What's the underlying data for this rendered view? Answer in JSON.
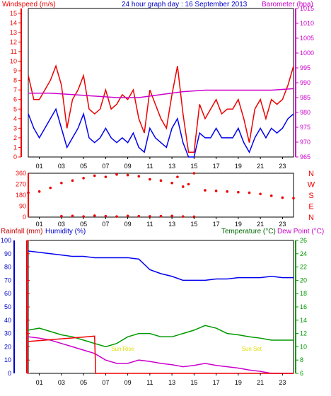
{
  "chart_data": [
    {
      "type": "line",
      "title": "24 hour graph day : 16 September 2013",
      "ylabel_left": "Windspeed (m/s)",
      "ylabel_right": "Barometer (hpa)",
      "x_ticks": [
        "01",
        "03",
        "05",
        "07",
        "09",
        "11",
        "13",
        "15",
        "17",
        "19",
        "21",
        "23"
      ],
      "ylim_left": [
        0,
        15.5
      ],
      "yticks_left": [
        0,
        1,
        2,
        3,
        4,
        5,
        6,
        7,
        8,
        9,
        10,
        11,
        12,
        13,
        14,
        15
      ],
      "ylim_right": [
        965,
        1015
      ],
      "yticks_right": [
        965,
        970,
        975,
        980,
        985,
        990,
        995,
        1000,
        1005,
        1010,
        1015
      ],
      "series": [
        {
          "color": "#ee0000",
          "x": [
            0,
            0.5,
            1,
            1.5,
            2,
            2.5,
            3,
            3.5,
            4,
            4.5,
            5,
            5.5,
            6,
            6.5,
            7,
            7.5,
            8,
            8.5,
            9,
            9.5,
            10,
            10.5,
            11,
            11.5,
            12,
            12.5,
            13,
            13.5,
            14,
            14.5,
            15,
            15.5,
            16,
            16.5,
            17,
            17.5,
            18,
            18.5,
            19,
            19.5,
            20,
            20.5,
            21,
            21.5,
            22,
            22.5,
            23,
            23.5,
            24
          ],
          "values": [
            8.5,
            6,
            6,
            7,
            8,
            9.5,
            7.5,
            3,
            6,
            7,
            8.5,
            5,
            4.5,
            5,
            7,
            5,
            5.5,
            6.5,
            6,
            7,
            4,
            2.5,
            7,
            5.5,
            4,
            3,
            6.5,
            9.5,
            4.5,
            0.5,
            0.5,
            5.5,
            4,
            5,
            6,
            4.5,
            5,
            5,
            6,
            4,
            1.5,
            5,
            6,
            4,
            6,
            5.5,
            6,
            7.5,
            9.5
          ]
        },
        {
          "color": "#0000ee",
          "x": [
            0,
            0.5,
            1,
            1.5,
            2,
            2.5,
            3,
            3.5,
            4,
            4.5,
            5,
            5.5,
            6,
            6.5,
            7,
            7.5,
            8,
            8.5,
            9,
            9.5,
            10,
            10.5,
            11,
            11.5,
            12,
            12.5,
            13,
            13.5,
            14,
            14.5,
            15,
            15.5,
            16,
            16.5,
            17,
            17.5,
            18,
            18.5,
            19,
            19.5,
            20,
            20.5,
            21,
            21.5,
            22,
            22.5,
            23,
            23.5,
            24
          ],
          "values": [
            4.5,
            3,
            2,
            3,
            4,
            5,
            3,
            1,
            2,
            3,
            4.5,
            2,
            1.5,
            2,
            3,
            2,
            1.5,
            2,
            1.5,
            2.5,
            1,
            0.5,
            3,
            2,
            1.5,
            1,
            3,
            4,
            1.5,
            0,
            0,
            2.5,
            2,
            2,
            3,
            2,
            2,
            2,
            3,
            1.5,
            0.5,
            2,
            3,
            2,
            3,
            2.5,
            3,
            4,
            4.5
          ]
        },
        {
          "color": "#cc00cc",
          "axis": "right",
          "x": [
            0,
            2,
            4,
            6,
            8,
            10,
            12,
            14,
            16,
            18,
            20,
            22,
            24
          ],
          "values": [
            986.5,
            986.5,
            986,
            985.5,
            985,
            985,
            986,
            987,
            987.5,
            987.5,
            987.5,
            987.5,
            988
          ]
        }
      ]
    },
    {
      "type": "scatter",
      "ylabel_right": "N W S E N",
      "x_ticks": [
        "01",
        "03",
        "05",
        "07",
        "09",
        "11",
        "13",
        "15",
        "17",
        "19",
        "21",
        "23"
      ],
      "yticks_left": [
        0,
        90,
        180,
        270,
        360
      ],
      "ylim_left": [
        0,
        360
      ],
      "compass_labels": [
        "N",
        "W",
        "S",
        "E",
        "N"
      ],
      "series": [
        {
          "color": "#ee0000",
          "x": [
            0,
            1,
            2,
            3,
            4,
            5,
            6,
            7,
            8,
            9,
            10,
            11,
            12,
            13,
            13.5,
            14,
            14.5,
            15,
            16,
            17,
            18,
            19,
            20,
            21,
            22,
            23,
            24
          ],
          "values": [
            200,
            210,
            240,
            280,
            300,
            320,
            340,
            330,
            350,
            345,
            335,
            310,
            300,
            280,
            330,
            250,
            270,
            360,
            220,
            215,
            210,
            205,
            200,
            190,
            175,
            160,
            155
          ]
        },
        {
          "color": "#ee0000",
          "x": [
            3,
            4,
            5,
            6,
            7,
            8,
            9,
            10,
            11,
            12,
            13,
            14,
            15
          ],
          "values": [
            8,
            10,
            5,
            12,
            8,
            5,
            10,
            8,
            6,
            8,
            10,
            5,
            3
          ]
        }
      ]
    },
    {
      "type": "line",
      "ylabel_left": "Rainfall (mm)",
      "ylabel_left2": "Humidity (%)",
      "ylabel_right": "Temperature (°C)",
      "ylabel_right2": "Dew Point (°C)",
      "x_ticks": [
        "01",
        "03",
        "05",
        "07",
        "09",
        "11",
        "13",
        "15",
        "17",
        "19",
        "21",
        "23"
      ],
      "ylim_left": [
        0,
        100
      ],
      "yticks_left_rain": [
        0,
        10,
        20,
        30,
        40,
        50,
        60,
        70,
        80,
        90,
        100
      ],
      "yticks_left_hum": [
        0,
        10,
        20,
        30,
        40,
        50,
        60,
        70,
        80,
        90,
        100
      ],
      "ylim_right": [
        6,
        26
      ],
      "yticks_right": [
        6,
        8,
        10,
        12,
        14,
        16,
        18,
        20,
        22,
        24,
        26
      ],
      "annotations": [
        "Sun Rise",
        "Sun Set"
      ],
      "series": [
        {
          "color": "#0000ee",
          "x": [
            0,
            1,
            2,
            3,
            4,
            5,
            6,
            7,
            8,
            9,
            10,
            11,
            12,
            13,
            14,
            15,
            16,
            17,
            18,
            19,
            20,
            21,
            22,
            23,
            24
          ],
          "values": [
            92,
            91,
            90,
            89,
            88,
            88,
            87,
            87,
            87,
            87,
            86,
            78,
            75,
            73,
            70,
            70,
            70,
            71,
            71,
            72,
            72,
            72,
            73,
            72,
            72
          ]
        },
        {
          "color": "#009900",
          "axis": "right",
          "x": [
            0,
            1,
            2,
            3,
            4,
            5,
            6,
            7,
            8,
            9,
            10,
            11,
            12,
            13,
            14,
            15,
            16,
            17,
            18,
            19,
            20,
            21,
            22,
            23,
            24
          ],
          "values": [
            12.5,
            12.8,
            12.3,
            11.8,
            11.5,
            11,
            10.5,
            10,
            10.5,
            11.5,
            12,
            12,
            11.5,
            11.5,
            12,
            12.5,
            13.2,
            12.8,
            12,
            11.8,
            11.5,
            11.3,
            11,
            11,
            11
          ]
        },
        {
          "color": "#cc00cc",
          "axis": "right",
          "x": [
            0,
            1,
            2,
            3,
            4,
            5,
            6,
            7,
            8,
            9,
            10,
            11,
            12,
            13,
            14,
            15,
            16,
            17,
            18,
            19,
            20,
            21,
            22,
            23,
            24
          ],
          "values": [
            11.5,
            11.3,
            11,
            10.5,
            10,
            9.5,
            9,
            8,
            7.5,
            7.5,
            8,
            7.8,
            7.5,
            7.3,
            7,
            7.2,
            7.5,
            7.2,
            7,
            6.8,
            6.5,
            6.3,
            6,
            6,
            6
          ]
        },
        {
          "color": "#ee0000",
          "x": [
            0,
            6,
            6.1,
            24
          ],
          "values": [
            24,
            28,
            0,
            0
          ]
        }
      ]
    }
  ]
}
